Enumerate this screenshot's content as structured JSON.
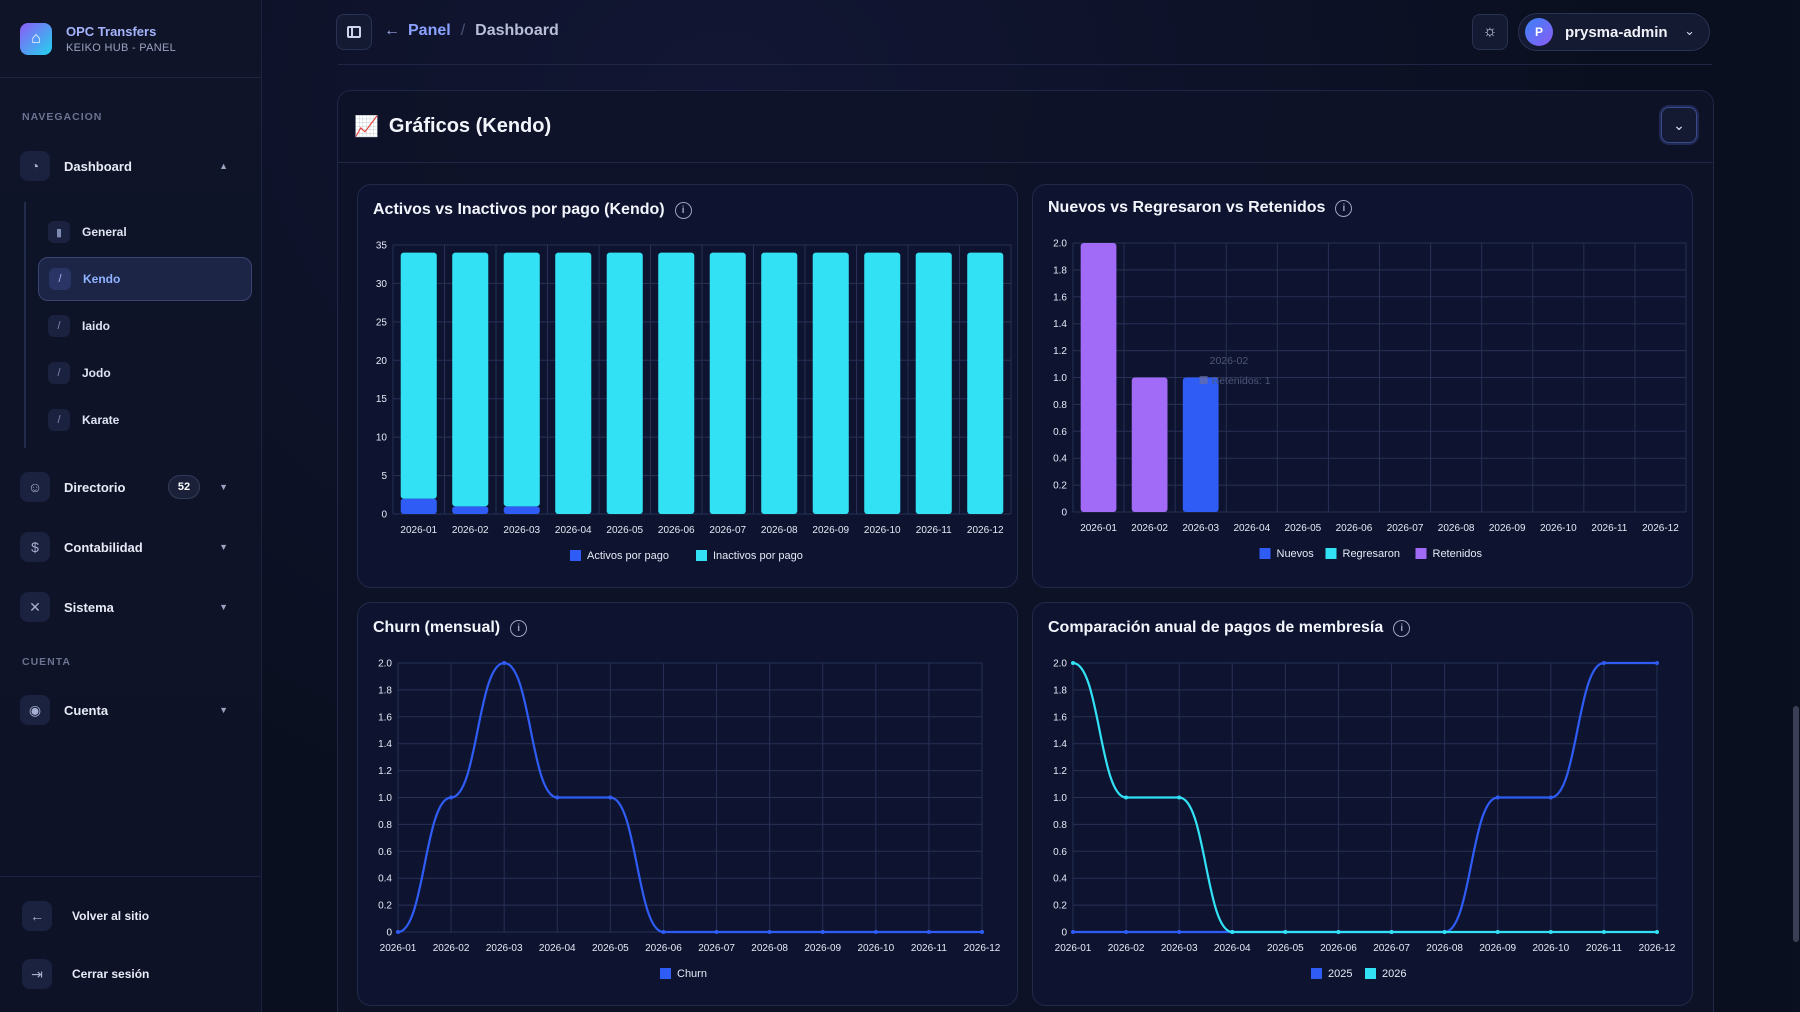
{
  "brand": {
    "title": "OPC Transfers",
    "subtitle": "KEIKO HUB - PANEL"
  },
  "sidebar": {
    "nav_label": "NAVEGACION",
    "dashboard": "Dashboard",
    "sub_items": [
      "General",
      "Kendo",
      "Iaido",
      "Jodo",
      "Karate"
    ],
    "directorio": "Directorio",
    "directorio_count": "52",
    "contabilidad": "Contabilidad",
    "sistema": "Sistema",
    "account_label": "CUENTA",
    "cuenta": "Cuenta",
    "volver": "Volver al sitio",
    "cerrar": "Cerrar sesión"
  },
  "header": {
    "crumb_link": "Panel",
    "crumb_current": "Dashboard",
    "user": "prysma-admin",
    "avatar": "P"
  },
  "panel": {
    "title": "Gráficos (Kendo)"
  },
  "colors": {
    "blue": "#2f5cf5",
    "cyan": "#33e1f5",
    "purple": "#a26bf7"
  },
  "chart_data": [
    {
      "type": "bar",
      "title": "Activos vs Inactivos por pago (Kendo)",
      "categories": [
        "2026-01",
        "2026-02",
        "2026-03",
        "2026-04",
        "2026-05",
        "2026-06",
        "2026-07",
        "2026-08",
        "2026-09",
        "2026-10",
        "2026-11",
        "2026-12"
      ],
      "stacked": true,
      "series": [
        {
          "name": "Activos por pago",
          "color": "#2f5cf5",
          "values": [
            2,
            1,
            1,
            0,
            0,
            0,
            0,
            0,
            0,
            0,
            0,
            0
          ]
        },
        {
          "name": "Inactivos por pago",
          "color": "#33e1f5",
          "values": [
            32,
            33,
            33,
            34,
            34,
            34,
            34,
            34,
            34,
            34,
            34,
            34
          ]
        }
      ],
      "yticks": [
        "0",
        "5",
        "10",
        "15",
        "20",
        "25",
        "30",
        "35"
      ],
      "ylim": [
        0,
        35
      ]
    },
    {
      "type": "bar",
      "title": "Nuevos vs Regresaron vs Retenidos",
      "categories": [
        "2026-01",
        "2026-02",
        "2026-03",
        "2026-04",
        "2026-05",
        "2026-06",
        "2026-07",
        "2026-08",
        "2026-09",
        "2026-10",
        "2026-11",
        "2026-12"
      ],
      "stacked": true,
      "series": [
        {
          "name": "Nuevos",
          "color": "#2f5cf5",
          "values": [
            0,
            0,
            1,
            0,
            0,
            0,
            0,
            0,
            0,
            0,
            0,
            0
          ]
        },
        {
          "name": "Regresaron",
          "color": "#33e1f5",
          "values": [
            0,
            0,
            0,
            0,
            0,
            0,
            0,
            0,
            0,
            0,
            0,
            0
          ]
        },
        {
          "name": "Retenidos",
          "color": "#a26bf7",
          "values": [
            2,
            1,
            0,
            0,
            0,
            0,
            0,
            0,
            0,
            0,
            0,
            0
          ]
        }
      ],
      "yticks": [
        "0",
        "0.2",
        "0.4",
        "0.6",
        "0.8",
        "1.0",
        "1.2",
        "1.4",
        "1.6",
        "1.8",
        "2.0"
      ],
      "ylim": [
        0,
        2
      ],
      "tooltip": {
        "title": "2026-02",
        "label": "Retenidos: 1"
      }
    },
    {
      "type": "line",
      "title": "Churn (mensual)",
      "categories": [
        "2026-01",
        "2026-02",
        "2026-03",
        "2026-04",
        "2026-05",
        "2026-06",
        "2026-07",
        "2026-08",
        "2026-09",
        "2026-10",
        "2026-11",
        "2026-12"
      ],
      "series": [
        {
          "name": "Churn",
          "color": "#2f5cf5",
          "values": [
            0,
            1,
            2,
            1,
            1,
            0,
            0,
            0,
            0,
            0,
            0,
            0
          ]
        }
      ],
      "yticks": [
        "0",
        "0.2",
        "0.4",
        "0.6",
        "0.8",
        "1.0",
        "1.2",
        "1.4",
        "1.6",
        "1.8",
        "2.0"
      ],
      "ylim": [
        0,
        2
      ]
    },
    {
      "type": "line",
      "title": "Comparación anual de pagos de membresía",
      "categories": [
        "2026-01",
        "2026-02",
        "2026-03",
        "2026-04",
        "2026-05",
        "2026-06",
        "2026-07",
        "2026-08",
        "2026-09",
        "2026-10",
        "2026-11",
        "2026-12"
      ],
      "series": [
        {
          "name": "2025",
          "color": "#2f5cf5",
          "values": [
            0,
            0,
            0,
            0,
            0,
            0,
            0,
            0,
            1,
            1,
            2,
            2
          ]
        },
        {
          "name": "2026",
          "color": "#33e1f5",
          "values": [
            2,
            1,
            1,
            0,
            0,
            0,
            0,
            0,
            0,
            0,
            0,
            0
          ]
        }
      ],
      "yticks": [
        "0",
        "0.2",
        "0.4",
        "0.6",
        "0.8",
        "1.0",
        "1.2",
        "1.4",
        "1.6",
        "1.8",
        "2.0"
      ],
      "ylim": [
        0,
        2
      ]
    }
  ]
}
